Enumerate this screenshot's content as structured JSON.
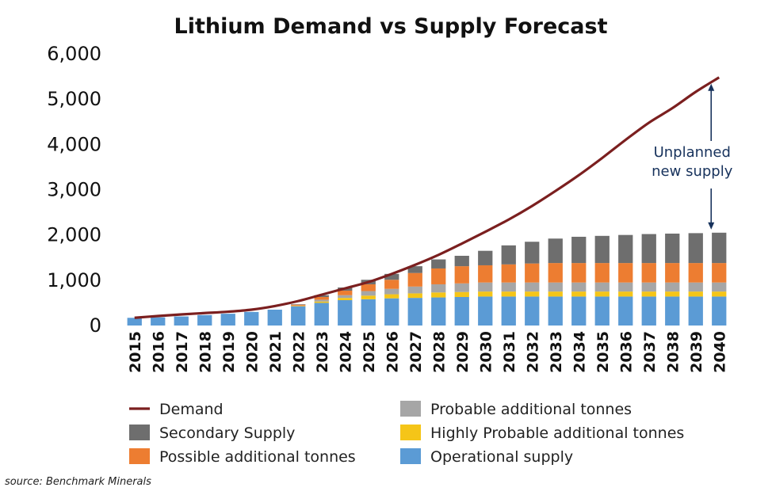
{
  "chart_data": {
    "type": "bar",
    "title": "Lithium Demand vs Supply Forecast",
    "source": "source: Benchmark Minerals",
    "ylim": [
      0,
      6000
    ],
    "yticks": [
      "0",
      "1,000",
      "2,000",
      "3,000",
      "4,000",
      "5,000",
      "6,000"
    ],
    "ytick_values": [
      0,
      1000,
      2000,
      3000,
      4000,
      5000,
      6000
    ],
    "categories": [
      "2015",
      "2016",
      "2017",
      "2018",
      "2019",
      "2020",
      "2021",
      "2022",
      "2023",
      "2024",
      "2025",
      "2026",
      "2027",
      "2028",
      "2029",
      "2030",
      "2031",
      "2032",
      "2033",
      "2034",
      "2035",
      "2036",
      "2037",
      "2038",
      "2039",
      "2040"
    ],
    "stack_order": [
      "Operational supply",
      "Highly Probable additional tonnes",
      "Probable additional tonnes",
      "Possible additional tonnes",
      "Secondary Supply"
    ],
    "series": [
      {
        "name": "Operational supply",
        "kind": "bar",
        "color": "#5b9bd5",
        "values": [
          170,
          180,
          200,
          230,
          260,
          300,
          350,
          420,
          500,
          560,
          580,
          600,
          610,
          620,
          630,
          640,
          640,
          640,
          640,
          640,
          640,
          640,
          640,
          640,
          640,
          640
        ]
      },
      {
        "name": "Highly Probable additional tonnes",
        "kind": "bar",
        "color": "#f5c518",
        "values": [
          0,
          0,
          0,
          0,
          0,
          0,
          0,
          10,
          30,
          50,
          80,
          90,
          100,
          110,
          110,
          110,
          110,
          110,
          110,
          110,
          110,
          110,
          110,
          110,
          110,
          110
        ]
      },
      {
        "name": "Probable additional tonnes",
        "kind": "bar",
        "color": "#a6a6a6",
        "values": [
          0,
          0,
          0,
          0,
          0,
          0,
          0,
          10,
          40,
          60,
          100,
          120,
          150,
          180,
          190,
          200,
          200,
          200,
          200,
          200,
          200,
          200,
          200,
          200,
          200,
          200
        ]
      },
      {
        "name": "Possible additional tonnes",
        "kind": "bar",
        "color": "#ed7d31",
        "values": [
          0,
          0,
          0,
          0,
          0,
          0,
          0,
          20,
          60,
          100,
          150,
          200,
          300,
          350,
          380,
          380,
          400,
          420,
          430,
          430,
          430,
          430,
          430,
          430,
          430,
          430
        ]
      },
      {
        "name": "Secondary Supply",
        "kind": "bar",
        "color": "#6e6e6e",
        "values": [
          0,
          0,
          0,
          0,
          0,
          0,
          0,
          10,
          40,
          70,
          100,
          130,
          150,
          200,
          230,
          320,
          420,
          480,
          540,
          580,
          600,
          620,
          640,
          650,
          660,
          670
        ]
      },
      {
        "name": "Demand",
        "kind": "line",
        "color": "#7b1f1f",
        "values": [
          170,
          210,
          245,
          275,
          305,
          350,
          430,
          540,
          680,
          820,
          960,
          1140,
          1340,
          1560,
          1810,
          2070,
          2340,
          2640,
          2970,
          3320,
          3700,
          4100,
          4480,
          4800,
          5160,
          5480
        ]
      }
    ],
    "annotation": {
      "lines": [
        "Unplanned",
        "new supply"
      ],
      "category": "2040",
      "from_value": 2050,
      "to_value": 5480
    },
    "legend": {
      "placement": "bottom",
      "entries": [
        {
          "label": "Demand",
          "series": "Demand"
        },
        {
          "label": "Probable additional tonnes",
          "series": "Probable additional tonnes"
        },
        {
          "label": "Secondary Supply",
          "series": "Secondary Supply"
        },
        {
          "label": "Highly Probable additional tonnes",
          "series": "Highly Probable additional tonnes"
        },
        {
          "label": "Possible additional tonnes",
          "series": "Possible additional tonnes"
        },
        {
          "label": "Operational supply",
          "series": "Operational supply"
        }
      ]
    },
    "grid": false
  }
}
